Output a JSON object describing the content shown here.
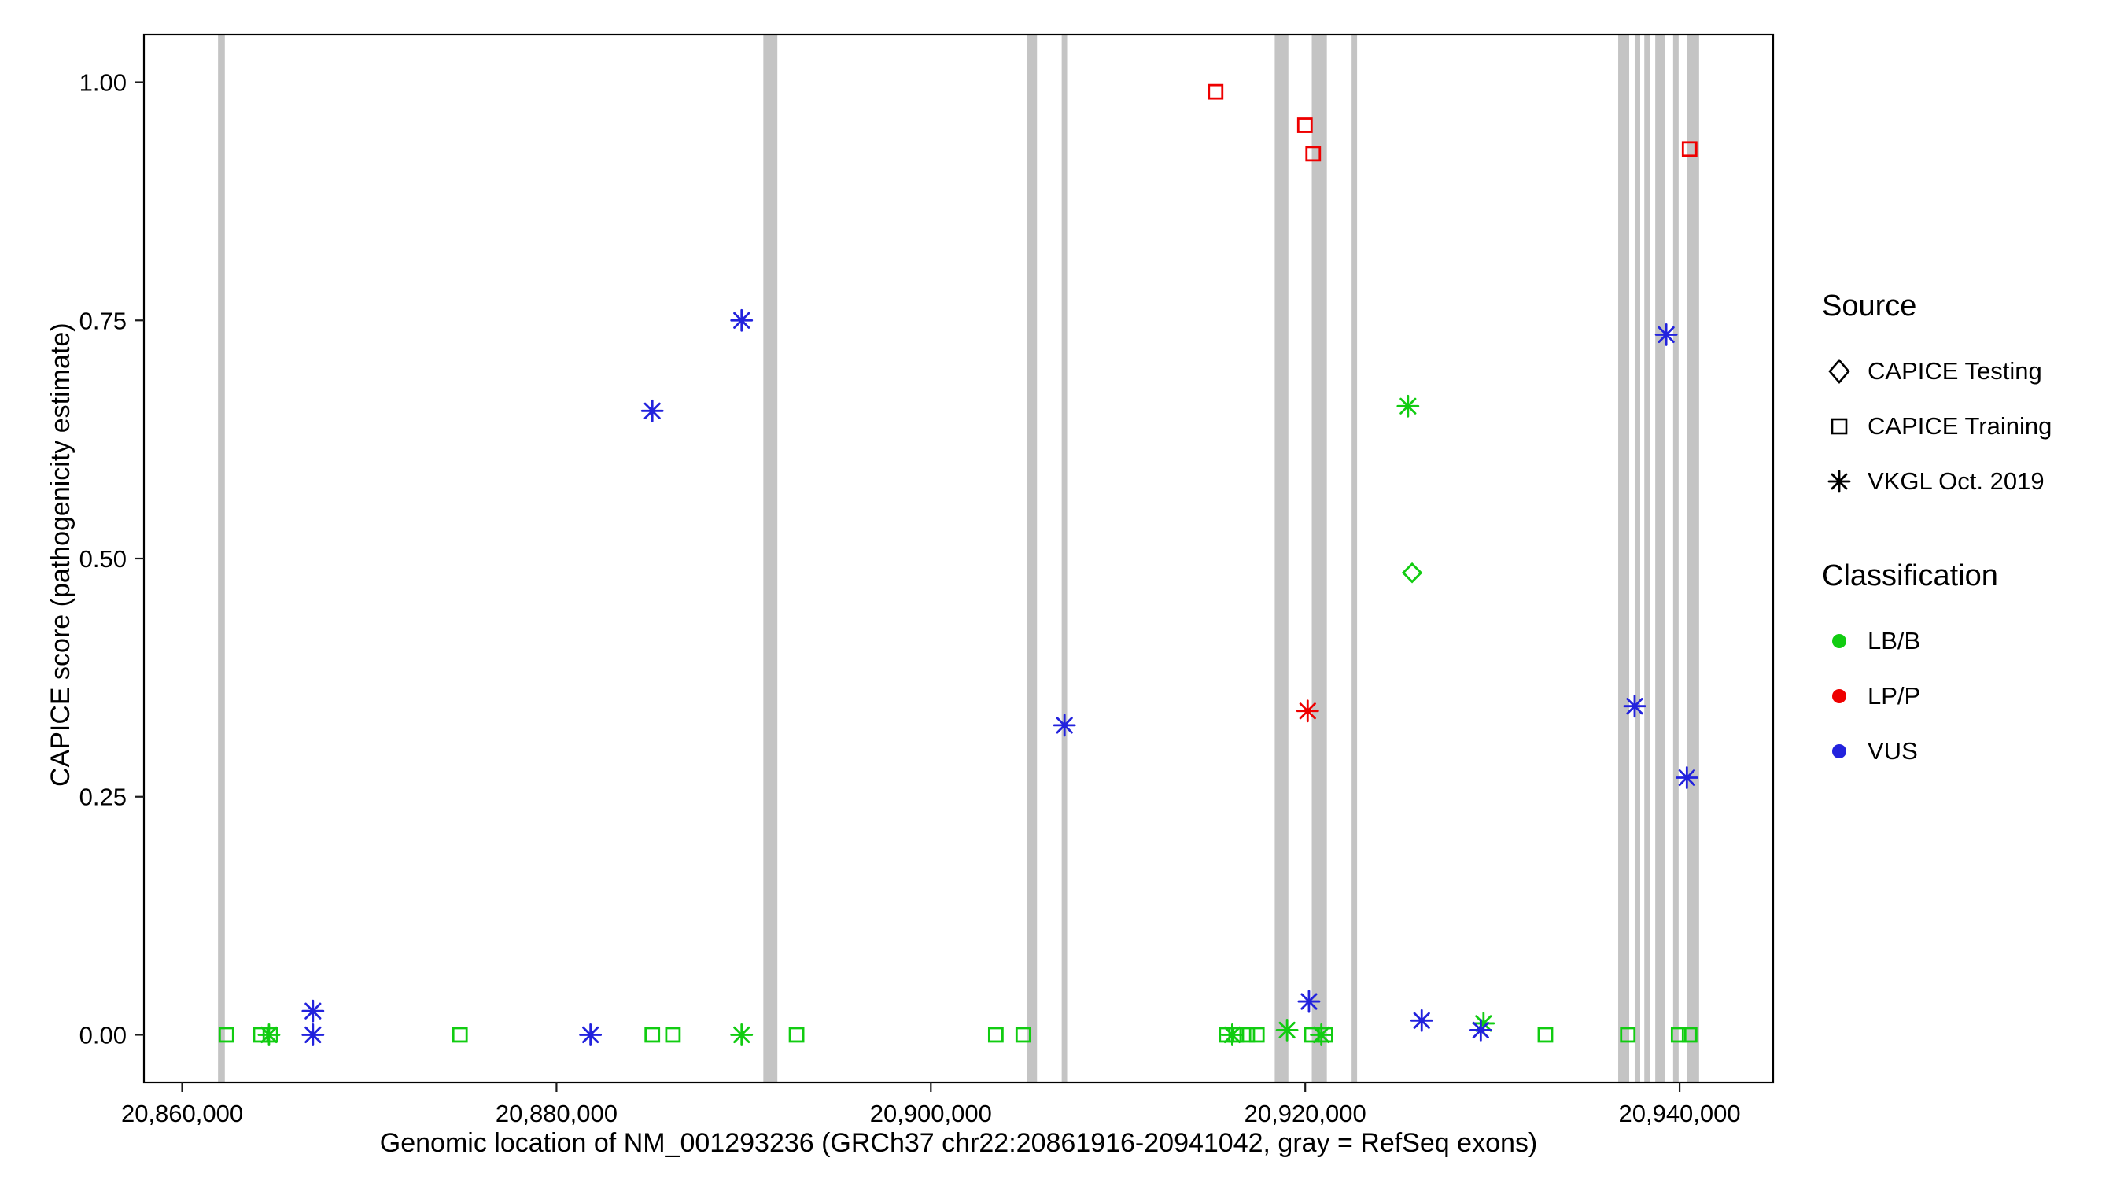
{
  "axes": {
    "x_ticks": [
      {
        "value": 20860000,
        "label": "20,860,000"
      },
      {
        "value": 20880000,
        "label": "20,880,000"
      },
      {
        "value": 20900000,
        "label": "20,900,000"
      },
      {
        "value": 20920000,
        "label": "20,920,000"
      },
      {
        "value": 20940000,
        "label": "20,940,000"
      }
    ],
    "y_ticks": [
      {
        "value": 0.0,
        "label": "0.00"
      },
      {
        "value": 0.25,
        "label": "0.25"
      },
      {
        "value": 0.5,
        "label": "0.50"
      },
      {
        "value": 0.75,
        "label": "0.75"
      },
      {
        "value": 1.0,
        "label": "1.00"
      }
    ]
  },
  "legend": {
    "source": {
      "title": "Source",
      "items": [
        {
          "shape": "diamond",
          "label": "CAPICE Testing"
        },
        {
          "shape": "square",
          "label": "CAPICE Training"
        },
        {
          "shape": "asterisk",
          "label": "VKGL Oct. 2019"
        }
      ]
    },
    "classification": {
      "title": "Classification",
      "items": [
        {
          "key": "LB/B",
          "label": "LB/B"
        },
        {
          "key": "LP/P",
          "label": "LP/P"
        },
        {
          "key": "VUS",
          "label": "VUS"
        }
      ]
    }
  },
  "chart_data": {
    "type": "scatter",
    "title": "",
    "xlabel": "Genomic location of NM_001293236 (GRCh37 chr22:20861916-20941042, gray = RefSeq exons)",
    "ylabel": "CAPICE score (pathogenicity estimate)",
    "xlim": [
      20857960,
      20944998
    ],
    "ylim": [
      -0.05,
      1.05
    ],
    "grid": false,
    "legend_position": "right",
    "exon_note": "gray vertical bars = RefSeq exons",
    "exon_color": "#C4C4C4",
    "palette": {
      "LB/B": "#11CC11",
      "LP/P": "#EE0000",
      "VUS": "#2222DD"
    },
    "exons": [
      [
        20861916,
        20862280
      ],
      [
        20891050,
        20891800
      ],
      [
        20905150,
        20905670
      ],
      [
        20906990,
        20907280
      ],
      [
        20918370,
        20919100
      ],
      [
        20920350,
        20921155
      ],
      [
        20922478,
        20922770
      ],
      [
        20936720,
        20937307
      ],
      [
        20937600,
        20937895
      ],
      [
        20938115,
        20938408
      ],
      [
        20938700,
        20939215
      ],
      [
        20939655,
        20939949
      ],
      [
        20940400,
        20941042
      ]
    ],
    "series": [
      {
        "name": "CAPICE Testing / LB/B",
        "source": "CAPICE Testing",
        "classification": "LB/B",
        "shape": "diamond",
        "points": [
          [
            20925710,
            0.485
          ]
        ]
      },
      {
        "name": "CAPICE Training / LB/B",
        "source": "CAPICE Training",
        "classification": "LB/B",
        "shape": "square",
        "points": [
          [
            20862364,
            0.0
          ],
          [
            20864200,
            0.0
          ],
          [
            20864714,
            0.0
          ],
          [
            20874842,
            0.0
          ],
          [
            20885118,
            0.0
          ],
          [
            20886219,
            0.0
          ],
          [
            20892825,
            0.0
          ],
          [
            20903470,
            0.0
          ],
          [
            20904938,
            0.0
          ],
          [
            20915800,
            0.0
          ],
          [
            20916314,
            0.0
          ],
          [
            20916901,
            0.0
          ],
          [
            20917415,
            0.0
          ],
          [
            20920350,
            0.0
          ],
          [
            20921080,
            0.0
          ],
          [
            20932830,
            0.0
          ],
          [
            20937233,
            0.0
          ],
          [
            20939949,
            0.0
          ],
          [
            20940536,
            0.0
          ]
        ]
      },
      {
        "name": "CAPICE Training / LP/P",
        "source": "CAPICE Training",
        "classification": "LP/P",
        "shape": "square",
        "points": [
          [
            20915212,
            0.99
          ],
          [
            20919983,
            0.955
          ],
          [
            20920424,
            0.925
          ],
          [
            20940535,
            0.93
          ]
        ]
      },
      {
        "name": "VKGL Oct. 2019 / LB/B",
        "source": "VKGL Oct. 2019",
        "classification": "LB/B",
        "shape": "asterisk",
        "points": [
          [
            20864640,
            0.0
          ],
          [
            20889889,
            0.0
          ],
          [
            20916100,
            0.0
          ],
          [
            20919030,
            0.005
          ],
          [
            20920860,
            0.0
          ],
          [
            20925490,
            0.66
          ],
          [
            20929525,
            0.012
          ]
        ]
      },
      {
        "name": "VKGL Oct. 2019 / LP/P",
        "source": "VKGL Oct. 2019",
        "classification": "LP/P",
        "shape": "asterisk",
        "points": [
          [
            20920130,
            0.34
          ]
        ]
      },
      {
        "name": "VKGL Oct. 2019 / VUS",
        "source": "VKGL Oct. 2019",
        "classification": "VUS",
        "shape": "asterisk",
        "points": [
          [
            20866988,
            0.025
          ],
          [
            20866988,
            0.0
          ],
          [
            20881816,
            0.0
          ],
          [
            20885118,
            0.655
          ],
          [
            20889889,
            0.75
          ],
          [
            20907140,
            0.325
          ],
          [
            20920200,
            0.035
          ],
          [
            20926222,
            0.015
          ],
          [
            20929378,
            0.005
          ],
          [
            20937600,
            0.345
          ],
          [
            20939288,
            0.735
          ],
          [
            20940389,
            0.27
          ]
        ]
      }
    ]
  }
}
